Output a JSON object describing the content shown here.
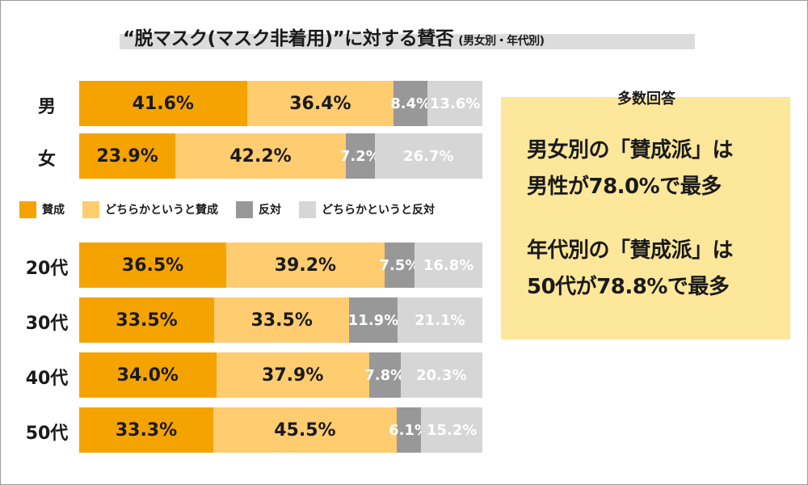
{
  "title": {
    "main": "“脱マスク(マスク非着用)”に対する賛否",
    "sub": "(男女別・年代別)"
  },
  "chart_data": {
    "type": "bar",
    "orientation": "horizontal",
    "stacked": true,
    "title": "“脱マスク(マスク非着用)”に対する賛否 (男女別・年代別)",
    "legend": [
      "賛成",
      "どちらかというと賛成",
      "反対",
      "どちらかというと反対"
    ],
    "colors": [
      "#f5a300",
      "#ffcc70",
      "#989898",
      "#d6d6d6"
    ],
    "groups": [
      {
        "name": "gender",
        "rows": [
          {
            "label": "男",
            "values": [
              41.6,
              36.4,
              8.4,
              13.6
            ],
            "labels": [
              "41.6%",
              "36.4%",
              "8.4%",
              "13.6%"
            ]
          },
          {
            "label": "女",
            "values": [
              23.9,
              42.2,
              7.2,
              26.7
            ],
            "labels": [
              "23.9%",
              "42.2%",
              "7.2%",
              "26.7%"
            ]
          }
        ]
      },
      {
        "name": "age",
        "rows": [
          {
            "label": "20代",
            "values": [
              36.5,
              39.2,
              7.5,
              16.8
            ],
            "labels": [
              "36.5%",
              "39.2%",
              "7.5%",
              "16.8%"
            ]
          },
          {
            "label": "30代",
            "values": [
              33.5,
              33.5,
              11.9,
              21.1
            ],
            "labels": [
              "33.5%",
              "33.5%",
              "11.9%",
              "21.1%"
            ]
          },
          {
            "label": "40代",
            "values": [
              34.0,
              37.9,
              7.8,
              20.3
            ],
            "labels": [
              "34.0%",
              "37.9%",
              "7.8%",
              "20.3%"
            ]
          },
          {
            "label": "50代",
            "values": [
              33.3,
              45.5,
              6.1,
              15.2
            ],
            "labels": [
              "33.3%",
              "45.5%",
              "6.1%",
              "15.2%"
            ]
          }
        ]
      }
    ]
  },
  "note": {
    "header": "多数回答",
    "lines": [
      "男女別の「賛成派」は",
      "男性が78.0%で最多",
      "年代別の「賛成派」は",
      "50代が78.8%で最多"
    ]
  }
}
